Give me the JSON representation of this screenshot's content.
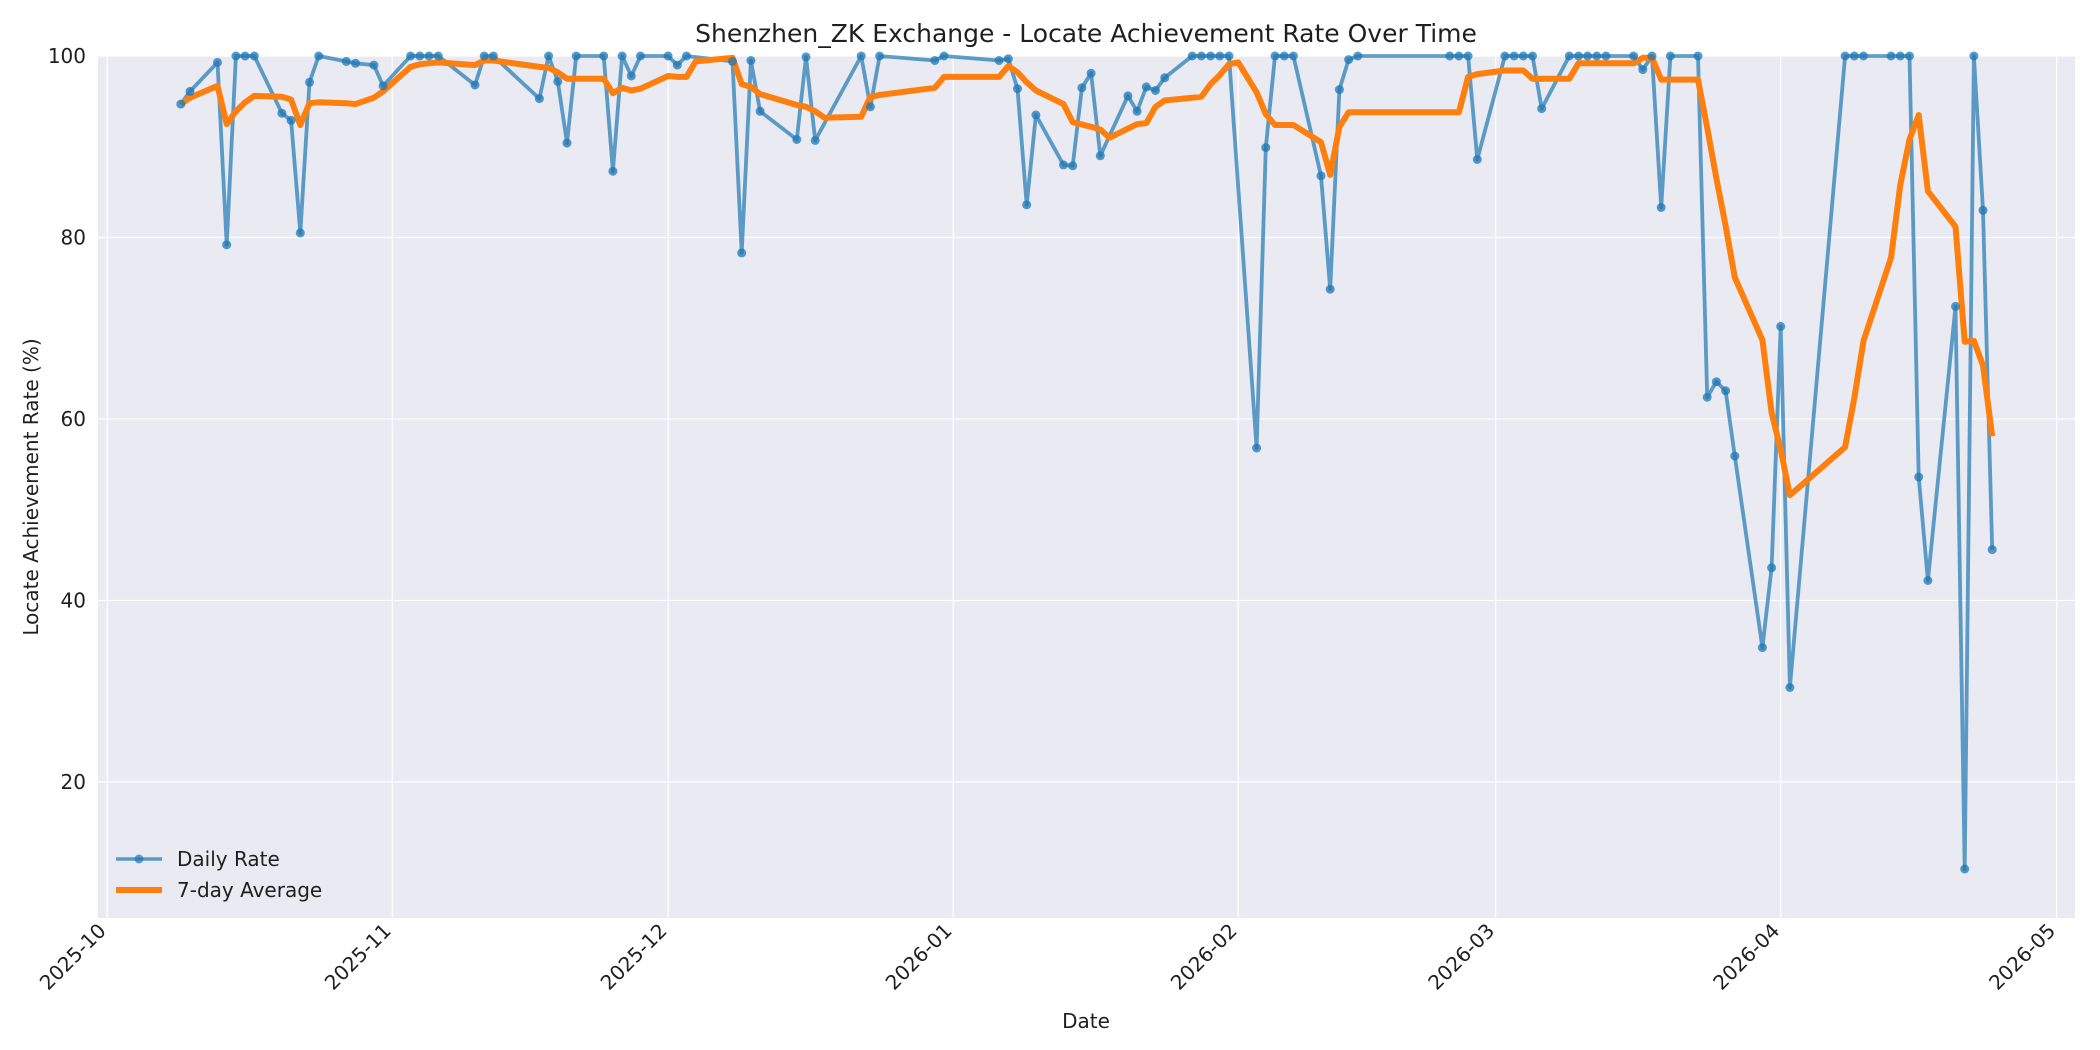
{
  "chart_data": {
    "type": "line",
    "title": "Shenzhen_ZK Exchange - Locate Achievement Rate Over Time",
    "xlabel": "Date",
    "ylabel": "Locate Achievement Rate (%)",
    "x_ticks": [
      "2025-10",
      "2025-11",
      "2025-12",
      "2026-01",
      "2026-02",
      "2026-03",
      "2026-04",
      "2026-05"
    ],
    "y_ticks": [
      20,
      40,
      60,
      80,
      100
    ],
    "xlim": [
      "2025-09-30",
      "2026-05-03"
    ],
    "ylim": [
      5,
      100
    ],
    "grid": true,
    "legend_position": "lower-left",
    "colors": {
      "background": "#eaeaf2",
      "grid": "#ffffff",
      "daily": "#1f77b4",
      "average": "#ff7f0e"
    },
    "series": [
      {
        "name": "Daily Rate",
        "marker": "circle",
        "points": [
          [
            "2025-10-09",
            94.7
          ],
          [
            "2025-10-10",
            96.1
          ],
          [
            "2025-10-13",
            99.3
          ],
          [
            "2025-10-14",
            79.2
          ],
          [
            "2025-10-15",
            100
          ],
          [
            "2025-10-16",
            100
          ],
          [
            "2025-10-17",
            100
          ],
          [
            "2025-10-20",
            93.7
          ],
          [
            "2025-10-21",
            92.9
          ],
          [
            "2025-10-22",
            80.5
          ],
          [
            "2025-10-23",
            97.1
          ],
          [
            "2025-10-24",
            100
          ],
          [
            "2025-10-27",
            99.4
          ],
          [
            "2025-10-28",
            99.2
          ],
          [
            "2025-10-30",
            99.0
          ],
          [
            "2025-10-31",
            96.7
          ],
          [
            "2025-11-03",
            100
          ],
          [
            "2025-11-04",
            100
          ],
          [
            "2025-11-05",
            100
          ],
          [
            "2025-11-06",
            100
          ],
          [
            "2025-11-10",
            96.8
          ],
          [
            "2025-11-11",
            100
          ],
          [
            "2025-11-12",
            100
          ],
          [
            "2025-11-17",
            95.3
          ],
          [
            "2025-11-18",
            100
          ],
          [
            "2025-11-19",
            97.2
          ],
          [
            "2025-11-20",
            90.4
          ],
          [
            "2025-11-21",
            100
          ],
          [
            "2025-11-24",
            100
          ],
          [
            "2025-11-25",
            87.3
          ],
          [
            "2025-11-26",
            100
          ],
          [
            "2025-11-27",
            97.8
          ],
          [
            "2025-11-28",
            100
          ],
          [
            "2025-12-01",
            100
          ],
          [
            "2025-12-02",
            99.0
          ],
          [
            "2025-12-03",
            100
          ],
          [
            "2025-12-08",
            99.4
          ],
          [
            "2025-12-09",
            78.3
          ],
          [
            "2025-12-10",
            99.5
          ],
          [
            "2025-12-11",
            93.9
          ],
          [
            "2025-12-15",
            90.8
          ],
          [
            "2025-12-16",
            99.9
          ],
          [
            "2025-12-17",
            90.7
          ],
          [
            "2025-12-22",
            100
          ],
          [
            "2025-12-23",
            94.4
          ],
          [
            "2025-12-24",
            100
          ],
          [
            "2025-12-30",
            99.5
          ],
          [
            "2025-12-31",
            100
          ],
          [
            "2026-01-06",
            99.5
          ],
          [
            "2026-01-07",
            99.7
          ],
          [
            "2026-01-08",
            96.4
          ],
          [
            "2026-01-09",
            83.6
          ],
          [
            "2026-01-10",
            93.5
          ],
          [
            "2026-01-13",
            88.0
          ],
          [
            "2026-01-14",
            87.9
          ],
          [
            "2026-01-15",
            96.5
          ],
          [
            "2026-01-16",
            98.1
          ],
          [
            "2026-01-17",
            89.0
          ],
          [
            "2026-01-20",
            95.6
          ],
          [
            "2026-01-21",
            93.9
          ],
          [
            "2026-01-22",
            96.6
          ],
          [
            "2026-01-23",
            96.2
          ],
          [
            "2026-01-24",
            97.6
          ],
          [
            "2026-01-27",
            100
          ],
          [
            "2026-01-28",
            100
          ],
          [
            "2026-01-29",
            100
          ],
          [
            "2026-01-30",
            100
          ],
          [
            "2026-01-31",
            100
          ],
          [
            "2026-02-03",
            56.8
          ],
          [
            "2026-02-04",
            89.9
          ],
          [
            "2026-02-05",
            100
          ],
          [
            "2026-02-06",
            100
          ],
          [
            "2026-02-07",
            100
          ],
          [
            "2026-02-10",
            86.8
          ],
          [
            "2026-02-11",
            74.3
          ],
          [
            "2026-02-12",
            96.3
          ],
          [
            "2026-02-13",
            99.6
          ],
          [
            "2026-02-14",
            100
          ],
          [
            "2026-02-24",
            100
          ],
          [
            "2026-02-25",
            100
          ],
          [
            "2026-02-26",
            100
          ],
          [
            "2026-02-27",
            88.6
          ],
          [
            "2026-03-02",
            100
          ],
          [
            "2026-03-03",
            100
          ],
          [
            "2026-03-04",
            100
          ],
          [
            "2026-03-05",
            100
          ],
          [
            "2026-03-06",
            94.2
          ],
          [
            "2026-03-09",
            100
          ],
          [
            "2026-03-10",
            100
          ],
          [
            "2026-03-11",
            100
          ],
          [
            "2026-03-12",
            100
          ],
          [
            "2026-03-13",
            100
          ],
          [
            "2026-03-16",
            100
          ],
          [
            "2026-03-17",
            98.5
          ],
          [
            "2026-03-18",
            100
          ],
          [
            "2026-03-19",
            83.3
          ],
          [
            "2026-03-20",
            100
          ],
          [
            "2026-03-23",
            100
          ],
          [
            "2026-03-24",
            62.4
          ],
          [
            "2026-03-25",
            64.1
          ],
          [
            "2026-03-26",
            63.1
          ],
          [
            "2026-03-27",
            55.9
          ],
          [
            "2026-03-30",
            34.8
          ],
          [
            "2026-03-31",
            43.6
          ],
          [
            "2026-04-01",
            70.2
          ],
          [
            "2026-04-02",
            30.4
          ],
          [
            "2026-04-08",
            100
          ],
          [
            "2026-04-09",
            100
          ],
          [
            "2026-04-10",
            100
          ],
          [
            "2026-04-13",
            100
          ],
          [
            "2026-04-14",
            100
          ],
          [
            "2026-04-15",
            100
          ],
          [
            "2026-04-16",
            53.6
          ],
          [
            "2026-04-17",
            42.2
          ],
          [
            "2026-04-20",
            72.4
          ],
          [
            "2026-04-21",
            10.4
          ],
          [
            "2026-04-22",
            100
          ],
          [
            "2026-04-23",
            83.0
          ],
          [
            "2026-04-24",
            45.6
          ]
        ]
      },
      {
        "name": "7-day Average",
        "marker": "none",
        "points": [
          [
            "2025-10-09",
            94.7
          ],
          [
            "2025-10-10",
            95.4
          ],
          [
            "2025-10-13",
            96.7
          ],
          [
            "2025-10-14",
            92.5
          ],
          [
            "2025-10-15",
            93.9
          ],
          [
            "2025-10-16",
            94.9
          ],
          [
            "2025-10-17",
            95.6
          ],
          [
            "2025-10-20",
            95.5
          ],
          [
            "2025-10-21",
            95.2
          ],
          [
            "2025-10-22",
            92.4
          ],
          [
            "2025-10-23",
            94.8
          ],
          [
            "2025-10-24",
            94.9
          ],
          [
            "2025-10-27",
            94.8
          ],
          [
            "2025-10-28",
            94.7
          ],
          [
            "2025-10-30",
            95.4
          ],
          [
            "2025-10-31",
            96.1
          ],
          [
            "2025-11-03",
            98.8
          ],
          [
            "2025-11-04",
            99.1
          ],
          [
            "2025-11-05",
            99.2
          ],
          [
            "2025-11-06",
            99.3
          ],
          [
            "2025-11-10",
            99.0
          ],
          [
            "2025-11-11",
            99.5
          ],
          [
            "2025-11-12",
            99.5
          ],
          [
            "2025-11-17",
            98.8
          ],
          [
            "2025-11-18",
            98.7
          ],
          [
            "2025-11-19",
            98.2
          ],
          [
            "2025-11-20",
            97.5
          ],
          [
            "2025-11-21",
            97.5
          ],
          [
            "2025-11-24",
            97.5
          ],
          [
            "2025-11-25",
            95.9
          ],
          [
            "2025-11-26",
            96.5
          ],
          [
            "2025-11-27",
            96.2
          ],
          [
            "2025-11-28",
            96.4
          ],
          [
            "2025-12-01",
            97.8
          ],
          [
            "2025-12-02",
            97.7
          ],
          [
            "2025-12-03",
            97.7
          ],
          [
            "2025-12-04",
            99.4
          ],
          [
            "2025-12-08",
            99.8
          ],
          [
            "2025-12-09",
            96.9
          ],
          [
            "2025-12-10",
            96.6
          ],
          [
            "2025-12-11",
            95.8
          ],
          [
            "2025-12-15",
            94.6
          ],
          [
            "2025-12-16",
            94.4
          ],
          [
            "2025-12-17",
            93.9
          ],
          [
            "2025-12-18",
            93.2
          ],
          [
            "2025-12-22",
            93.3
          ],
          [
            "2025-12-23",
            95.5
          ],
          [
            "2025-12-24",
            95.7
          ],
          [
            "2025-12-30",
            96.5
          ],
          [
            "2025-12-31",
            97.7
          ],
          [
            "2026-01-06",
            97.7
          ],
          [
            "2026-01-07",
            98.9
          ],
          [
            "2026-01-08",
            98.2
          ],
          [
            "2026-01-09",
            97.1
          ],
          [
            "2026-01-10",
            96.2
          ],
          [
            "2026-01-13",
            94.7
          ],
          [
            "2026-01-14",
            92.7
          ],
          [
            "2026-01-16",
            92.2
          ],
          [
            "2026-01-17",
            91.9
          ],
          [
            "2026-01-18",
            91.0
          ],
          [
            "2026-01-21",
            92.5
          ],
          [
            "2026-01-22",
            92.6
          ],
          [
            "2026-01-23",
            94.4
          ],
          [
            "2026-01-24",
            95.1
          ],
          [
            "2026-01-28",
            95.5
          ],
          [
            "2026-01-29",
            96.9
          ],
          [
            "2026-01-30",
            97.9
          ],
          [
            "2026-01-31",
            99.1
          ],
          [
            "2026-02-01",
            99.3
          ],
          [
            "2026-02-03",
            96.0
          ],
          [
            "2026-02-04",
            93.6
          ],
          [
            "2026-02-05",
            92.4
          ],
          [
            "2026-02-06",
            92.4
          ],
          [
            "2026-02-07",
            92.4
          ],
          [
            "2026-02-10",
            90.5
          ],
          [
            "2026-02-11",
            86.9
          ],
          [
            "2026-02-12",
            92.2
          ],
          [
            "2026-02-13",
            93.8
          ],
          [
            "2026-02-24",
            93.8
          ],
          [
            "2026-02-25",
            93.8
          ],
          [
            "2026-02-26",
            97.7
          ],
          [
            "2026-02-27",
            98.0
          ],
          [
            "2026-03-02",
            98.4
          ],
          [
            "2026-03-03",
            98.4
          ],
          [
            "2026-03-04",
            98.4
          ],
          [
            "2026-03-05",
            97.5
          ],
          [
            "2026-03-06",
            97.5
          ],
          [
            "2026-03-09",
            97.5
          ],
          [
            "2026-03-10",
            99.2
          ],
          [
            "2026-03-11",
            99.2
          ],
          [
            "2026-03-12",
            99.2
          ],
          [
            "2026-03-13",
            99.2
          ],
          [
            "2026-03-16",
            99.2
          ],
          [
            "2026-03-17",
            99.8
          ],
          [
            "2026-03-18",
            99.8
          ],
          [
            "2026-03-19",
            97.4
          ],
          [
            "2026-03-20",
            97.4
          ],
          [
            "2026-03-23",
            97.4
          ],
          [
            "2026-03-24",
            92.1
          ],
          [
            "2026-03-25",
            86.5
          ],
          [
            "2026-03-26",
            81.3
          ],
          [
            "2026-03-27",
            75.6
          ],
          [
            "2026-03-30",
            68.7
          ],
          [
            "2026-03-31",
            60.7
          ],
          [
            "2026-04-01",
            56.6
          ],
          [
            "2026-04-02",
            51.6
          ],
          [
            "2026-04-08",
            56.9
          ],
          [
            "2026-04-09",
            62.3
          ],
          [
            "2026-04-10",
            68.6
          ],
          [
            "2026-04-13",
            77.8
          ],
          [
            "2026-04-14",
            85.8
          ],
          [
            "2026-04-15",
            90.8
          ],
          [
            "2026-04-16",
            93.5
          ],
          [
            "2026-04-17",
            85.1
          ],
          [
            "2026-04-20",
            81.2
          ],
          [
            "2026-04-21",
            68.5
          ],
          [
            "2026-04-22",
            68.6
          ],
          [
            "2026-04-23",
            65.9
          ],
          [
            "2026-04-24",
            58.1
          ]
        ]
      }
    ]
  }
}
